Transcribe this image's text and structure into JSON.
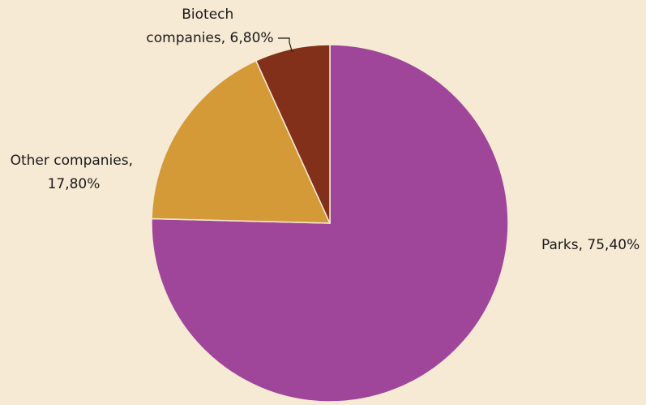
{
  "chart_data": {
    "type": "pie",
    "slices": [
      {
        "name": "Parks",
        "value": 75.4,
        "label_lines": [
          "Parks, 75,40%"
        ],
        "color": "#a0469a"
      },
      {
        "name": "Other companies",
        "value": 17.8,
        "label_lines": [
          "Other companies,",
          "17,80%"
        ],
        "color": "#d49a38"
      },
      {
        "name": "Biotech companies",
        "value": 6.8,
        "label_lines": [
          "Biotech",
          "companies, 6,80%"
        ],
        "color": "#83301a"
      }
    ],
    "start_angle_deg": 0,
    "direction": "clockwise",
    "slice_border_color": "#f6ead4",
    "background": "#f6ead4"
  }
}
